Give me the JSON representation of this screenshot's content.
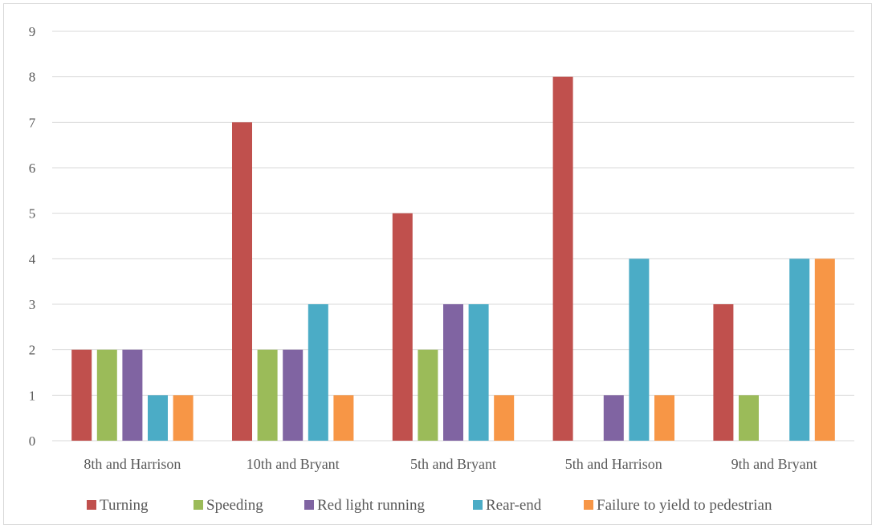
{
  "chart_data": {
    "type": "bar",
    "categories": [
      "8th and Harrison",
      "10th and Bryant",
      "5th and Bryant",
      "5th and Harrison",
      "9th and Bryant"
    ],
    "series": [
      {
        "name": "Turning",
        "color": "#c0504d",
        "values": [
          2,
          7,
          5,
          8,
          3
        ]
      },
      {
        "name": "Speeding",
        "color": "#9bbb59",
        "values": [
          2,
          2,
          2,
          0,
          1
        ]
      },
      {
        "name": "Red light running",
        "color": "#8064a2",
        "values": [
          2,
          2,
          3,
          1,
          0
        ]
      },
      {
        "name": "Rear-end",
        "color": "#4bacc6",
        "values": [
          1,
          3,
          3,
          4,
          4
        ]
      },
      {
        "name": "Failure to yield to pedestrian",
        "color": "#f79646",
        "values": [
          1,
          1,
          1,
          1,
          4
        ]
      }
    ],
    "yticks": [
      "0",
      "1",
      "2",
      "3",
      "4",
      "5",
      "6",
      "7",
      "8",
      "9"
    ],
    "ylim": [
      0,
      9
    ],
    "grid": true,
    "legend_position": "bottom"
  }
}
